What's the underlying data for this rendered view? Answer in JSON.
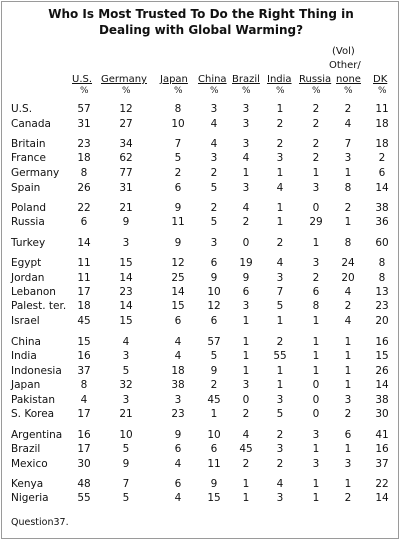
{
  "title_lines": [
    "Who Is Most Trusted To Do the Right Thing in",
    "Dealing with Global Warming?"
  ],
  "columns": [
    "U.S.",
    "Germany",
    "Japan",
    "China",
    "Brazil",
    "India",
    "Russia",
    "(Vol) Other/ none",
    "DK"
  ],
  "column_header": {
    "vol": "(Vol)",
    "other": "Other/",
    "none": "none"
  },
  "percent_symbol": "%",
  "rows": [
    {
      "country": "U.S.",
      "values": [
        "57",
        "12",
        "8",
        "3",
        "3",
        "1",
        "2",
        "2",
        "11"
      ]
    },
    {
      "country": "Canada",
      "values": [
        "31",
        "27",
        "10",
        "4",
        "3",
        "2",
        "2",
        "4",
        "18"
      ]
    },
    {
      "country": "Britain",
      "values": [
        "23",
        "34",
        "7",
        "4",
        "3",
        "2",
        "2",
        "7",
        "18"
      ]
    },
    {
      "country": "France",
      "values": [
        "18",
        "62",
        "5",
        "3",
        "4",
        "3",
        "2",
        "3",
        "2"
      ]
    },
    {
      "country": "Germany",
      "values": [
        "8",
        "77",
        "2",
        "2",
        "1",
        "1",
        "1",
        "1",
        "6"
      ]
    },
    {
      "country": "Spain",
      "values": [
        "26",
        "31",
        "6",
        "5",
        "3",
        "4",
        "3",
        "8",
        "14"
      ]
    },
    {
      "country": "Poland",
      "values": [
        "22",
        "21",
        "9",
        "2",
        "4",
        "1",
        "0",
        "2",
        "38"
      ]
    },
    {
      "country": "Russia",
      "values": [
        "6",
        "9",
        "11",
        "5",
        "2",
        "1",
        "29",
        "1",
        "36"
      ]
    },
    {
      "country": "Turkey",
      "values": [
        "14",
        "3",
        "9",
        "3",
        "0",
        "2",
        "1",
        "8",
        "60"
      ]
    },
    {
      "country": "Egypt",
      "values": [
        "11",
        "15",
        "12",
        "6",
        "19",
        "4",
        "3",
        "24",
        "8"
      ]
    },
    {
      "country": "Jordan",
      "values": [
        "11",
        "14",
        "25",
        "9",
        "9",
        "3",
        "2",
        "20",
        "8"
      ]
    },
    {
      "country": "Lebanon",
      "values": [
        "17",
        "23",
        "14",
        "10",
        "6",
        "7",
        "6",
        "4",
        "13"
      ]
    },
    {
      "country": "Palest. ter.",
      "values": [
        "18",
        "14",
        "15",
        "12",
        "3",
        "5",
        "8",
        "2",
        "23"
      ]
    },
    {
      "country": "Israel",
      "values": [
        "45",
        "15",
        "6",
        "6",
        "1",
        "1",
        "1",
        "4",
        "20"
      ]
    },
    {
      "country": "China",
      "values": [
        "15",
        "4",
        "4",
        "57",
        "1",
        "2",
        "1",
        "1",
        "16"
      ]
    },
    {
      "country": "India",
      "values": [
        "16",
        "3",
        "4",
        "5",
        "1",
        "55",
        "1",
        "1",
        "15"
      ]
    },
    {
      "country": "Indonesia",
      "values": [
        "37",
        "5",
        "18",
        "9",
        "1",
        "1",
        "1",
        "1",
        "26"
      ]
    },
    {
      "country": "Japan",
      "values": [
        "8",
        "32",
        "38",
        "2",
        "3",
        "1",
        "0",
        "1",
        "14"
      ]
    },
    {
      "country": "Pakistan",
      "values": [
        "4",
        "3",
        "3",
        "45",
        "0",
        "3",
        "0",
        "3",
        "38"
      ]
    },
    {
      "country": "S. Korea",
      "values": [
        "17",
        "21",
        "23",
        "1",
        "2",
        "5",
        "0",
        "2",
        "30"
      ]
    },
    {
      "country": "Argentina",
      "values": [
        "16",
        "10",
        "9",
        "10",
        "4",
        "2",
        "3",
        "6",
        "41"
      ]
    },
    {
      "country": "Brazil",
      "values": [
        "17",
        "5",
        "6",
        "6",
        "45",
        "3",
        "1",
        "1",
        "16"
      ]
    },
    {
      "country": "Mexico",
      "values": [
        "30",
        "9",
        "4",
        "11",
        "2",
        "2",
        "3",
        "3",
        "37"
      ]
    },
    {
      "country": "Kenya",
      "values": [
        "48",
        "7",
        "6",
        "9",
        "1",
        "4",
        "1",
        "1",
        "22"
      ]
    },
    {
      "country": "Nigeria",
      "values": [
        "55",
        "5",
        "4",
        "15",
        "1",
        "3",
        "1",
        "2",
        "14"
      ]
    }
  ],
  "footnote": "Question37."
}
